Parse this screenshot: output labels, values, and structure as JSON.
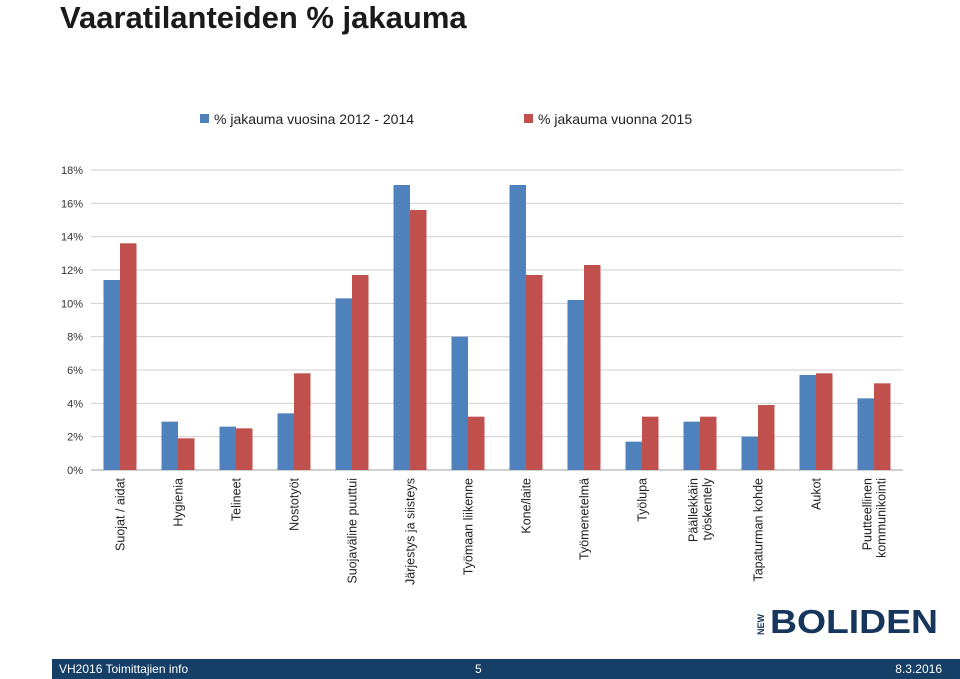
{
  "slide": {
    "title": "Vaaratilanteiden % jakauma"
  },
  "footer": {
    "left": "VH2016 Toimittajien info",
    "center": "5",
    "right": "8.3.2016"
  },
  "logo": {
    "icon": "boliden-logo",
    "text": "BOLIDEN",
    "prefix": "NEW"
  },
  "colors": {
    "series_1": "#4f81bd",
    "series_2": "#c0504d",
    "grid": "#d0d0d0",
    "footer_bg": "#163f67",
    "logo": "#17365d"
  },
  "chart_data": {
    "type": "bar",
    "title": "",
    "xlabel": "",
    "ylabel": "",
    "ylim": [
      0,
      18
    ],
    "yticks": [
      0,
      2,
      4,
      6,
      8,
      10,
      12,
      14,
      16,
      18
    ],
    "ytick_suffix": "%",
    "grid": true,
    "legend_position": "top",
    "categories": [
      "Suojat / aidat",
      "Hygienia",
      "Telineet",
      "Nostotyöt",
      "Suojaväline puuttui",
      "Järjestys ja siisteys",
      "Työmaan liikenne",
      "Kone/laite",
      "Työmenetelmä",
      "Työlupa",
      "Päällekkäin työskentely",
      "Tapaturman kohde",
      "Aukot",
      "Puutteellinen kommunikointi"
    ],
    "series": [
      {
        "name": "% jakauma vuosina 2012 - 2014",
        "values": [
          11.4,
          2.9,
          2.6,
          3.4,
          10.3,
          17.1,
          8.0,
          17.1,
          10.2,
          1.7,
          2.9,
          2.0,
          5.7,
          4.3
        ]
      },
      {
        "name": "% jakauma vuonna 2015",
        "values": [
          13.6,
          1.9,
          2.5,
          5.8,
          11.7,
          15.6,
          3.2,
          11.7,
          12.3,
          3.2,
          3.2,
          3.9,
          5.8,
          5.2
        ]
      }
    ]
  }
}
